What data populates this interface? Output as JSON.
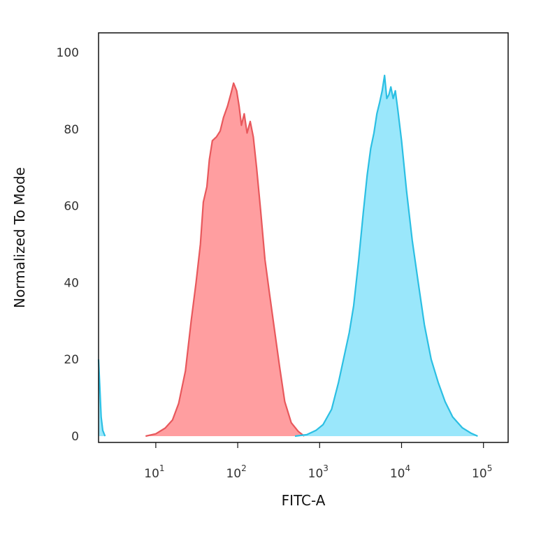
{
  "chart_data": {
    "type": "area",
    "title": "",
    "xlabel": "FITC-A",
    "ylabel": "Normalized To Mode",
    "x_scale": "log",
    "xlim": [
      2,
      200000
    ],
    "ylim": [
      0,
      100
    ],
    "x_ticks": [
      {
        "value": 10,
        "base": "10",
        "exp": "1"
      },
      {
        "value": 100,
        "base": "10",
        "exp": "2"
      },
      {
        "value": 1000,
        "base": "10",
        "exp": "3"
      },
      {
        "value": 10000,
        "base": "10",
        "exp": "4"
      },
      {
        "value": 100000,
        "base": "10",
        "exp": "5"
      }
    ],
    "y_ticks": [
      "0",
      "20",
      "40",
      "60",
      "80",
      "100"
    ],
    "grid": false,
    "legend": "none",
    "series": [
      {
        "color": "#e8585c",
        "fill": "#ff9ea0",
        "points": [
          [
            7.5,
            0
          ],
          [
            10,
            0.6
          ],
          [
            13,
            2.1
          ],
          [
            16,
            4.2
          ],
          [
            19,
            8.5
          ],
          [
            23,
            17
          ],
          [
            27,
            30
          ],
          [
            31,
            40
          ],
          [
            35,
            50
          ],
          [
            38,
            61
          ],
          [
            42,
            65
          ],
          [
            45,
            72
          ],
          [
            49,
            77
          ],
          [
            55,
            78
          ],
          [
            61,
            79.5
          ],
          [
            67,
            83
          ],
          [
            75,
            86
          ],
          [
            82,
            89
          ],
          [
            89,
            92
          ],
          [
            97,
            90
          ],
          [
            104,
            86
          ],
          [
            111,
            81
          ],
          [
            120,
            84
          ],
          [
            130,
            79
          ],
          [
            142,
            82
          ],
          [
            155,
            78
          ],
          [
            170,
            70
          ],
          [
            190,
            59
          ],
          [
            215,
            46
          ],
          [
            245,
            37
          ],
          [
            280,
            28
          ],
          [
            325,
            18
          ],
          [
            375,
            9
          ],
          [
            450,
            3.5
          ],
          [
            550,
            1.2
          ],
          [
            650,
            0
          ]
        ]
      },
      {
        "color": "#2bbfe3",
        "fill": "#9ae7fb",
        "points": [
          [
            500,
            0
          ],
          [
            700,
            0.4
          ],
          [
            900,
            1.5
          ],
          [
            1100,
            3
          ],
          [
            1400,
            7
          ],
          [
            1700,
            14
          ],
          [
            2000,
            21
          ],
          [
            2300,
            27
          ],
          [
            2600,
            34
          ],
          [
            3000,
            46
          ],
          [
            3400,
            58
          ],
          [
            3800,
            68
          ],
          [
            4200,
            75
          ],
          [
            4600,
            79
          ],
          [
            5000,
            84
          ],
          [
            5400,
            87
          ],
          [
            5800,
            90
          ],
          [
            6200,
            94
          ],
          [
            6600,
            88
          ],
          [
            7000,
            89
          ],
          [
            7400,
            91
          ],
          [
            7900,
            88
          ],
          [
            8400,
            90
          ],
          [
            9000,
            85
          ],
          [
            10000,
            77
          ],
          [
            11500,
            64
          ],
          [
            13500,
            51
          ],
          [
            16000,
            40
          ],
          [
            19000,
            29
          ],
          [
            23000,
            20
          ],
          [
            28000,
            14
          ],
          [
            34000,
            9
          ],
          [
            42000,
            5
          ],
          [
            55000,
            2.2
          ],
          [
            70000,
            0.8
          ],
          [
            85000,
            0
          ]
        ]
      },
      {
        "color": "#2bbfe3",
        "fill": "#9ae7fb",
        "points": [
          [
            2,
            20
          ],
          [
            2.08,
            12
          ],
          [
            2.15,
            5
          ],
          [
            2.25,
            1.5
          ],
          [
            2.4,
            0
          ]
        ]
      }
    ]
  }
}
